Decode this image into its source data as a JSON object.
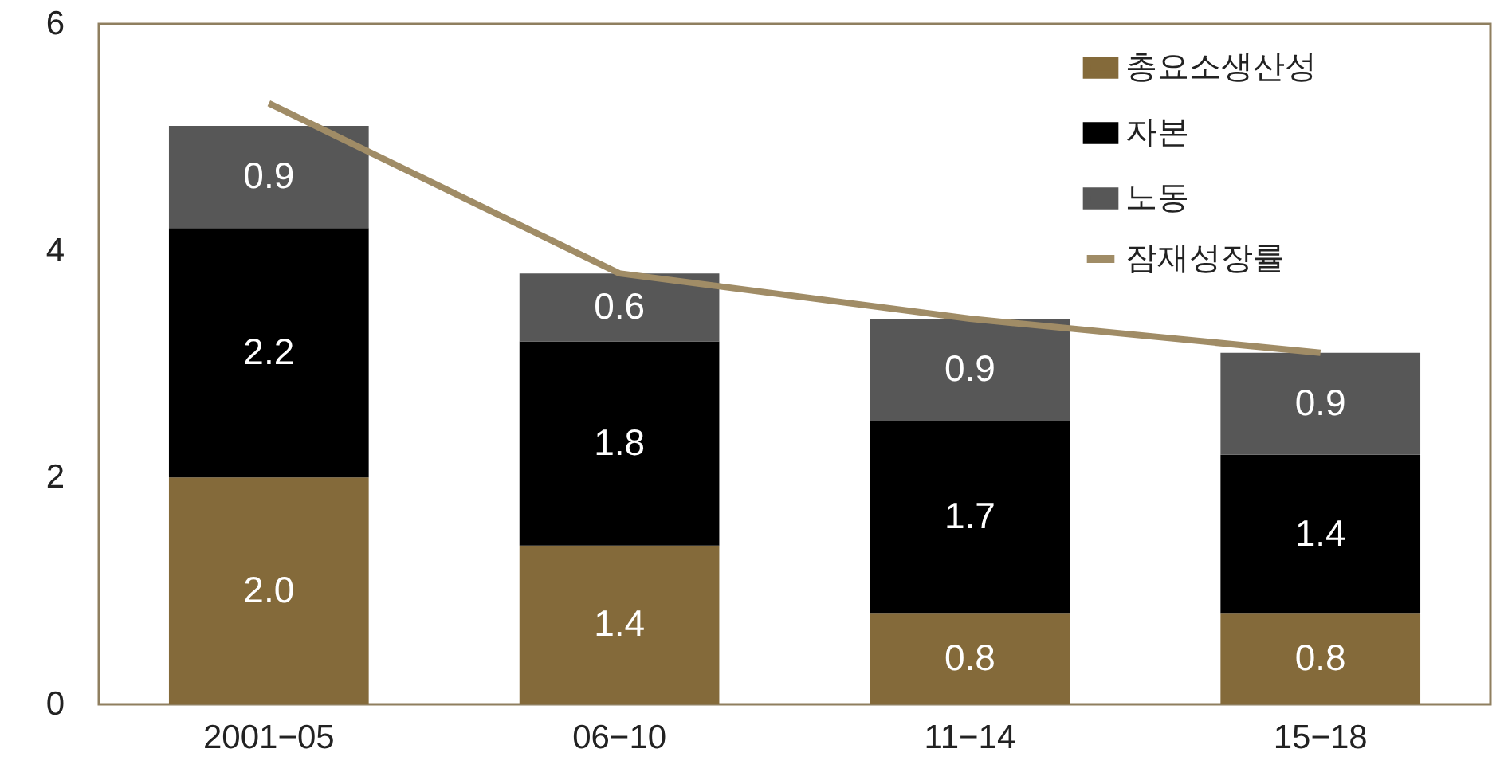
{
  "chart_data": {
    "type": "bar",
    "stacked": true,
    "legend": "top right",
    "categories": [
      "2001−05",
      "06−10",
      "11−14",
      "15−18"
    ],
    "series": [
      {
        "name": "총요소생산성",
        "color": "#846a3a",
        "values": [
          2.0,
          1.4,
          0.8,
          0.8
        ],
        "value_labels": [
          "2.0",
          "1.4",
          "0.8",
          "0.8"
        ]
      },
      {
        "name": "자본",
        "color": "#000000",
        "values": [
          2.2,
          1.8,
          1.7,
          1.4
        ],
        "value_labels": [
          "2.2",
          "1.8",
          "1.7",
          "1.4"
        ]
      },
      {
        "name": "노동",
        "color": "#575757",
        "values": [
          0.9,
          0.6,
          0.9,
          0.9
        ],
        "value_labels": [
          "0.9",
          "0.6",
          "0.9",
          "0.9"
        ]
      },
      {
        "name": "잠재성장률",
        "type": "line",
        "color": "#a08c66",
        "values": [
          5.3,
          3.8,
          3.4,
          3.1
        ]
      }
    ],
    "ylim": [
      0,
      6
    ],
    "yticks": [
      0,
      2,
      4,
      6
    ]
  }
}
